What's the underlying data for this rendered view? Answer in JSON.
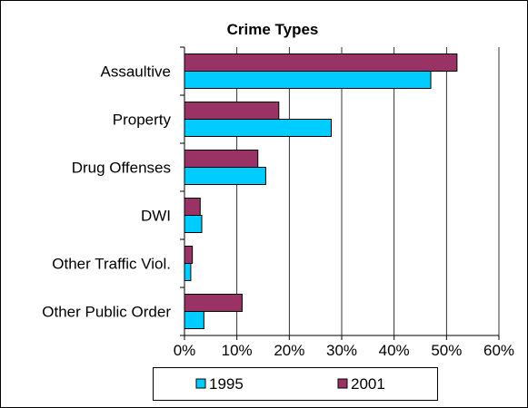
{
  "chart_data": {
    "type": "bar",
    "orientation": "horizontal",
    "title": "Crime Types",
    "categories": [
      "Assaultive",
      "Property",
      "Drug Offenses",
      "DWI",
      "Other Traffic Viol.",
      "Other Public Order"
    ],
    "series": [
      {
        "name": "1995",
        "color": "#00CCFF",
        "values": [
          47,
          28,
          15.5,
          3.3,
          1.2,
          3.7
        ]
      },
      {
        "name": "2001",
        "color": "#993366",
        "values": [
          52,
          18,
          14,
          3,
          1.5,
          11
        ]
      }
    ],
    "xlim": [
      0,
      60
    ],
    "xticks": [
      "0%",
      "10%",
      "20%",
      "30%",
      "40%",
      "50%",
      "60%"
    ],
    "grid": "vertical",
    "legend_position": "bottom"
  }
}
